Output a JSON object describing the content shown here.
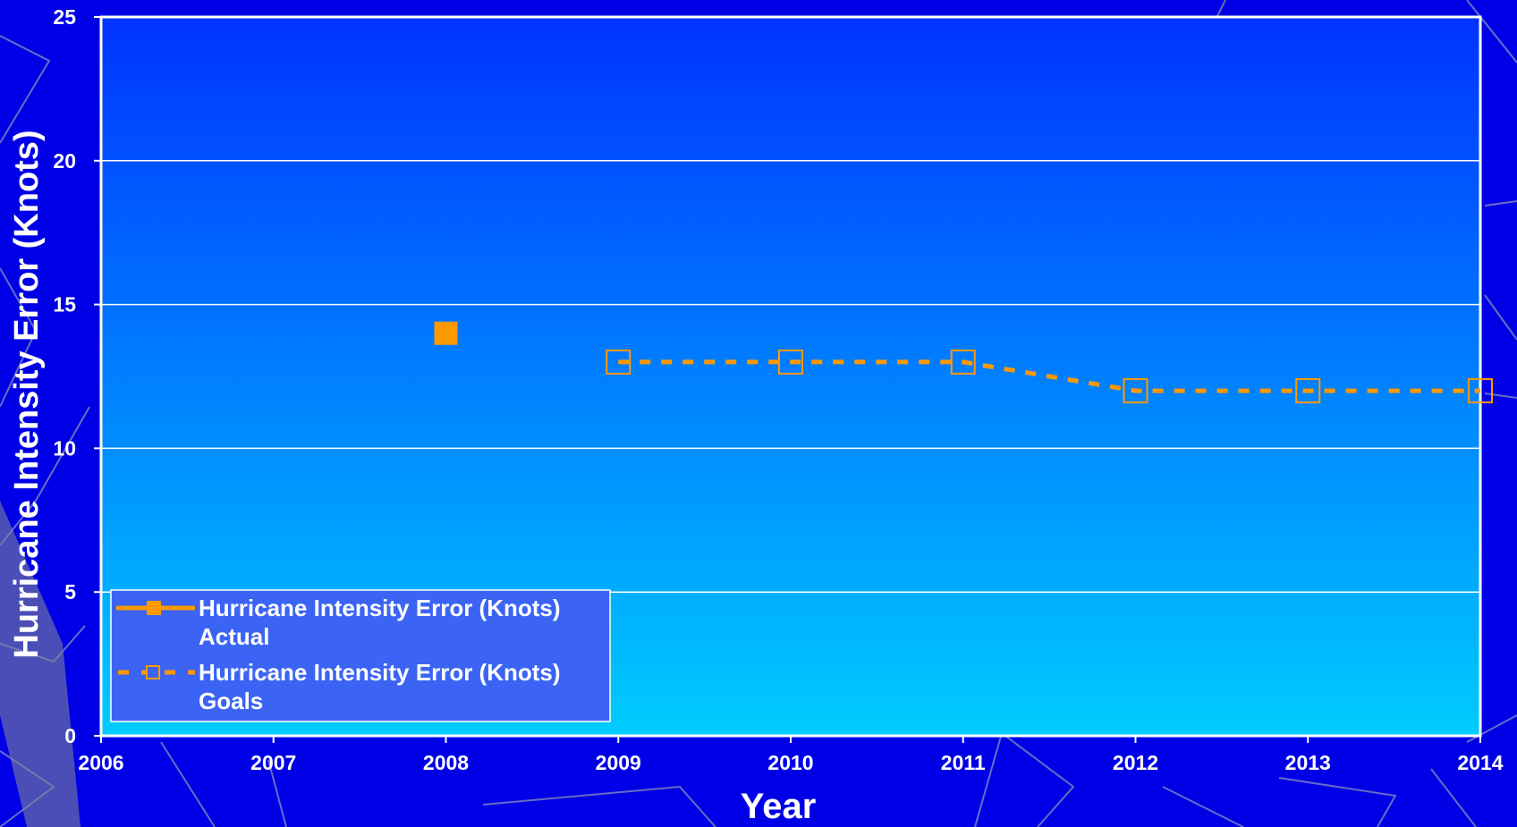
{
  "chart_data": {
    "type": "line",
    "title": "",
    "xlabel": "Year",
    "ylabel": "Hurricane Intensity Error (Knots)",
    "x_ticks": [
      "2006",
      "2007",
      "2008",
      "2009",
      "2010",
      "2011",
      "2012",
      "2013",
      "2014"
    ],
    "xlim": [
      2006,
      2014
    ],
    "y_ticks": [
      "0",
      "5",
      "10",
      "15",
      "20",
      "25"
    ],
    "ylim": [
      0,
      25
    ],
    "grid": true,
    "legend_position": "bottom-left",
    "series": [
      {
        "name": "Hurricane Intensity Error (Knots) Actual",
        "name_lines": [
          "Hurricane Intensity Error (Knots)",
          "Actual"
        ],
        "style": "solid",
        "marker": "filled-square",
        "color": "#ff9900",
        "points": [
          {
            "x": 2008,
            "y": 14
          }
        ]
      },
      {
        "name": "Hurricane Intensity Error (Knots) Goals",
        "name_lines": [
          "Hurricane Intensity Error (Knots)",
          "Goals"
        ],
        "style": "dashed",
        "marker": "hollow-square",
        "color": "#ff9900",
        "points": [
          {
            "x": 2009,
            "y": 13
          },
          {
            "x": 2010,
            "y": 13
          },
          {
            "x": 2011,
            "y": 13
          },
          {
            "x": 2012,
            "y": 12
          },
          {
            "x": 2013,
            "y": 12
          },
          {
            "x": 2014,
            "y": 12
          }
        ]
      }
    ]
  },
  "colors": {
    "background": "#0000e6",
    "plot_top": "#0033ff",
    "plot_bottom": "#00ccff",
    "legend_box": "#3b64f5",
    "marker": "#ff9900"
  }
}
